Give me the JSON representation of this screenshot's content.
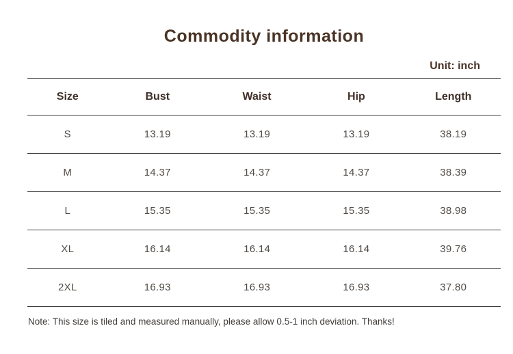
{
  "page": {
    "title": "Commodity information",
    "unit_label": "Unit: inch",
    "note": "Note: This size is tiled and measured manually, please allow 0.5-1 inch deviation. Thanks!"
  },
  "colors": {
    "background": "#ffffff",
    "title_text": "#4a3426",
    "header_text": "#40302a",
    "body_text": "#524c47",
    "note_text": "#403c39",
    "table_line": "#3e3e3e"
  },
  "table": {
    "columns": [
      "Size",
      "Bust",
      "Waist",
      "Hip",
      "Length"
    ],
    "rows": [
      {
        "size": "S",
        "bust": "13.19",
        "waist": "13.19",
        "hip": "13.19",
        "length": "38.19"
      },
      {
        "size": "M",
        "bust": "14.37",
        "waist": "14.37",
        "hip": "14.37",
        "length": "38.39"
      },
      {
        "size": "L",
        "bust": "15.35",
        "waist": "15.35",
        "hip": "15.35",
        "length": "38.98"
      },
      {
        "size": "XL",
        "bust": "16.14",
        "waist": "16.14",
        "hip": "16.14",
        "length": "39.76"
      },
      {
        "size": "2XL",
        "bust": "16.93",
        "waist": "16.93",
        "hip": "16.93",
        "length": "37.80"
      }
    ]
  },
  "chart_data": {
    "type": "table",
    "title": "Commodity information",
    "unit": "inch",
    "columns": [
      "Size",
      "Bust",
      "Waist",
      "Hip",
      "Length"
    ],
    "rows": [
      [
        "S",
        13.19,
        13.19,
        13.19,
        38.19
      ],
      [
        "M",
        14.37,
        14.37,
        14.37,
        38.39
      ],
      [
        "L",
        15.35,
        15.35,
        15.35,
        38.98
      ],
      [
        "XL",
        16.14,
        16.14,
        16.14,
        39.76
      ],
      [
        "2XL",
        16.93,
        16.93,
        16.93,
        37.8
      ]
    ],
    "note": "Note: This size is tiled and measured manually, please allow 0.5-1 inch deviation. Thanks!",
    "layout_hints": {
      "grid": "horizontal-lines-only",
      "header_style": "bold",
      "title_position": "top-center",
      "unit_position": "top-right-above-table"
    }
  }
}
